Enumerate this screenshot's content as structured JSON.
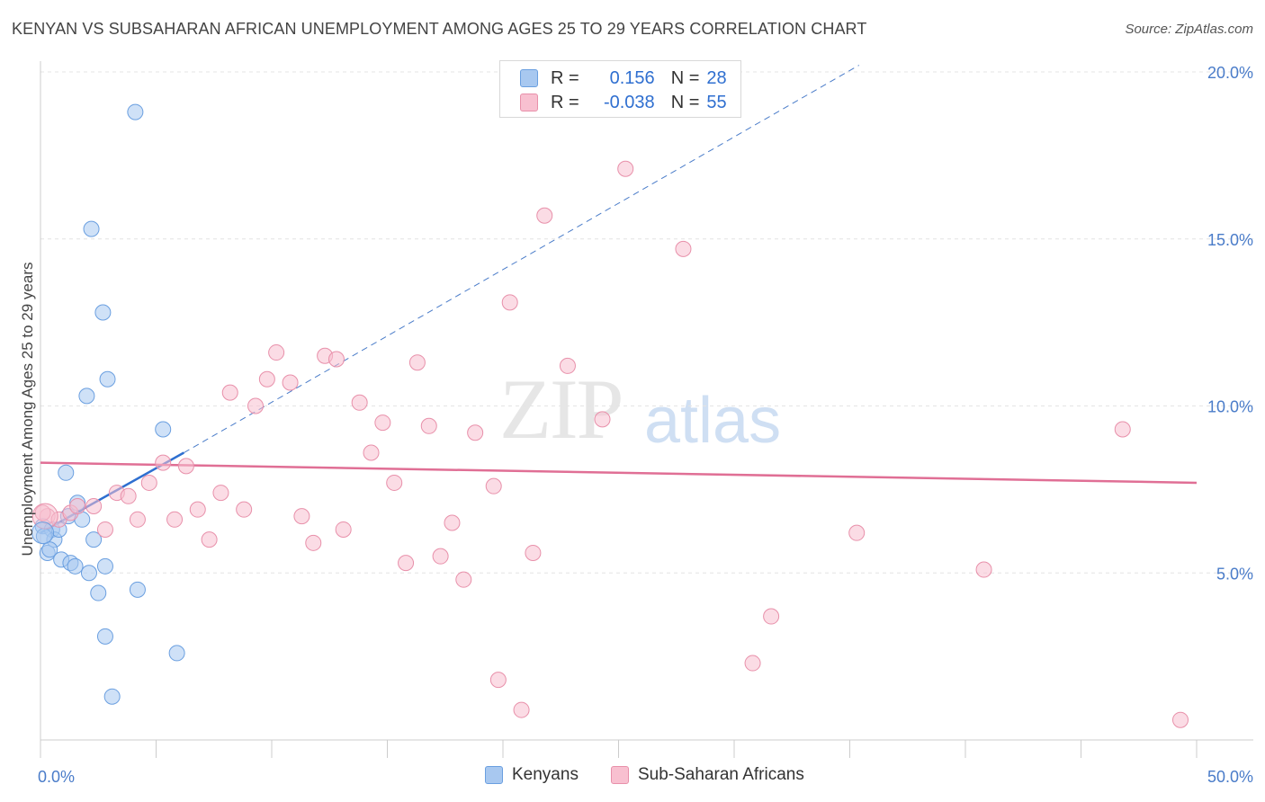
{
  "title": "KENYAN VS SUBSAHARAN AFRICAN UNEMPLOYMENT AMONG AGES 25 TO 29 YEARS CORRELATION CHART",
  "source": "Source: ZipAtlas.com",
  "watermark": {
    "zip": "ZIP",
    "atlas": "atlas"
  },
  "legend": {
    "r_label": "R =",
    "n_label": "N =",
    "rows": [
      {
        "r": "0.156",
        "n": "28",
        "color": "#a8c8f0",
        "border": "#6a9fe0"
      },
      {
        "r": "-0.038",
        "n": "55",
        "color": "#f8c0d0",
        "border": "#e890aa"
      }
    ]
  },
  "bottom_legend": [
    {
      "label": "Kenyans",
      "color": "#a8c8f0",
      "border": "#6a9fe0"
    },
    {
      "label": "Sub-Saharan Africans",
      "color": "#f8c0d0",
      "border": "#e890aa"
    }
  ],
  "chart_data": {
    "type": "scatter",
    "title": "KENYAN VS SUBSAHARAN AFRICAN UNEMPLOYMENT AMONG AGES 25 TO 29 YEARS CORRELATION CHART",
    "xlabel": "",
    "ylabel": "Unemployment Among Ages 25 to 29 years",
    "xlim": [
      0,
      50
    ],
    "ylim": [
      0,
      20
    ],
    "x_tick_labels": [
      "0.0%",
      "50.0%"
    ],
    "y_ticks": [
      5,
      10,
      15,
      20
    ],
    "y_tick_labels": [
      "5.0%",
      "10.0%",
      "15.0%",
      "20.0%"
    ],
    "grid": true,
    "series": [
      {
        "name": "Kenyans",
        "color": "#a8c8f0",
        "stroke": "#6a9fe0",
        "points": [
          [
            0.1,
            6.4
          ],
          [
            0.3,
            5.6
          ],
          [
            0.5,
            6.3
          ],
          [
            0.6,
            6.0
          ],
          [
            0.8,
            6.3
          ],
          [
            0.9,
            5.4
          ],
          [
            1.1,
            8.0
          ],
          [
            1.2,
            6.7
          ],
          [
            1.3,
            5.3
          ],
          [
            1.5,
            5.2
          ],
          [
            1.6,
            7.1
          ],
          [
            1.8,
            6.6
          ],
          [
            2.0,
            10.3
          ],
          [
            2.1,
            5.0
          ],
          [
            2.2,
            15.3
          ],
          [
            2.3,
            6.0
          ],
          [
            2.5,
            4.4
          ],
          [
            2.7,
            12.8
          ],
          [
            2.8,
            5.2
          ],
          [
            2.8,
            3.1
          ],
          [
            2.9,
            10.8
          ],
          [
            3.1,
            1.3
          ],
          [
            4.1,
            18.8
          ],
          [
            4.2,
            4.5
          ],
          [
            5.3,
            9.3
          ],
          [
            5.9,
            2.6
          ],
          [
            0.15,
            6.1
          ],
          [
            0.4,
            5.7
          ]
        ],
        "trend": {
          "x0": 0,
          "y0": 6.2,
          "x1": 6.2,
          "y1": 8.6,
          "dash_x1": 35.4,
          "dash_y1": 20.2
        }
      },
      {
        "name": "Sub-Saharan Africans",
        "color": "#f8c0d0",
        "stroke": "#e890aa",
        "points": [
          [
            0.3,
            6.7
          ],
          [
            0.8,
            6.6
          ],
          [
            1.3,
            6.8
          ],
          [
            1.6,
            7.0
          ],
          [
            2.3,
            7.0
          ],
          [
            2.8,
            6.3
          ],
          [
            3.3,
            7.4
          ],
          [
            3.8,
            7.3
          ],
          [
            4.2,
            6.6
          ],
          [
            4.7,
            7.7
          ],
          [
            5.3,
            8.3
          ],
          [
            5.8,
            6.6
          ],
          [
            6.3,
            8.2
          ],
          [
            6.8,
            6.9
          ],
          [
            7.3,
            6.0
          ],
          [
            7.8,
            7.4
          ],
          [
            8.2,
            10.4
          ],
          [
            8.8,
            6.9
          ],
          [
            9.3,
            10.0
          ],
          [
            9.8,
            10.8
          ],
          [
            10.2,
            11.6
          ],
          [
            10.8,
            10.7
          ],
          [
            11.3,
            6.7
          ],
          [
            11.8,
            5.9
          ],
          [
            12.3,
            11.5
          ],
          [
            12.8,
            11.4
          ],
          [
            13.1,
            6.3
          ],
          [
            13.8,
            10.1
          ],
          [
            14.3,
            8.6
          ],
          [
            14.8,
            9.5
          ],
          [
            15.3,
            7.7
          ],
          [
            15.8,
            5.3
          ],
          [
            16.3,
            11.3
          ],
          [
            16.8,
            9.4
          ],
          [
            17.3,
            5.5
          ],
          [
            17.8,
            6.5
          ],
          [
            18.3,
            4.8
          ],
          [
            18.8,
            9.2
          ],
          [
            19.6,
            7.6
          ],
          [
            19.8,
            1.8
          ],
          [
            20.3,
            13.1
          ],
          [
            20.8,
            0.9
          ],
          [
            21.3,
            5.6
          ],
          [
            21.8,
            15.7
          ],
          [
            22.8,
            11.2
          ],
          [
            24.3,
            9.6
          ],
          [
            25.3,
            17.1
          ],
          [
            27.8,
            14.7
          ],
          [
            30.8,
            2.3
          ],
          [
            31.6,
            3.7
          ],
          [
            35.3,
            6.2
          ],
          [
            40.8,
            5.1
          ],
          [
            46.8,
            9.3
          ],
          [
            49.3,
            0.6
          ],
          [
            0.1,
            6.8
          ]
        ],
        "trend": {
          "x0": 0,
          "y0": 8.3,
          "x1": 50,
          "y1": 7.7
        }
      }
    ]
  }
}
